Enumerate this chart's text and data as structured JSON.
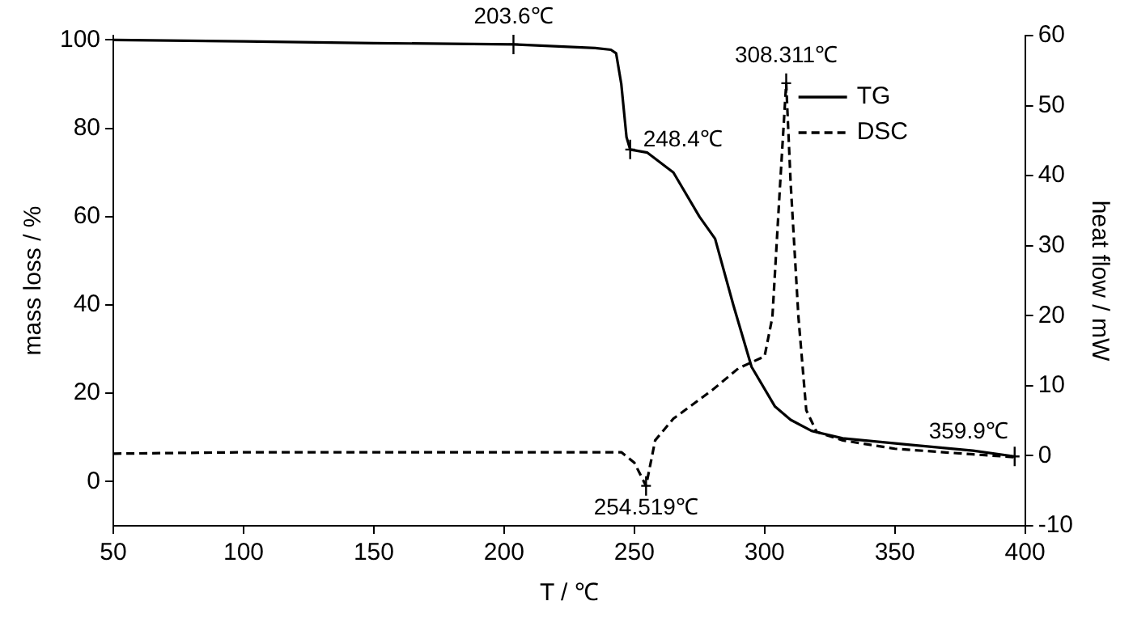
{
  "chart_data": {
    "type": "line",
    "xlabel": "T / ℃",
    "ylabel": "mass loss / %",
    "y2label": "heat flow / mW",
    "xlim": [
      50,
      400
    ],
    "xticks": [
      50,
      100,
      150,
      200,
      250,
      300,
      350,
      400
    ],
    "ylim": [
      -10,
      101
    ],
    "yticks": [
      0,
      20,
      40,
      60,
      80,
      100
    ],
    "y2lim": [
      -10,
      60
    ],
    "y2ticks": [
      -10,
      0,
      10,
      20,
      30,
      40,
      50,
      60
    ],
    "grid": false,
    "legend": "top right",
    "marker": "none",
    "series": [
      {
        "name": "TG",
        "color": "#000000",
        "line_style": "solid",
        "x": [
          50,
          100,
          150,
          203.6,
          235,
          241,
          243,
          245,
          247,
          248.4,
          255,
          265,
          275,
          281,
          288,
          295,
          304,
          310,
          318,
          330,
          355,
          380,
          396
        ],
        "values": [
          100,
          99.7,
          99.3,
          99,
          98.2,
          97.8,
          97,
          90,
          78,
          75.2,
          74.5,
          70,
          60,
          55,
          40,
          26,
          17,
          14,
          11.5,
          9.8,
          8.4,
          7,
          5.7
        ]
      },
      {
        "name": "DSC",
        "color": "#000000",
        "line_style": "dashed",
        "axis": "y2",
        "x": [
          50,
          100,
          150,
          200,
          245,
          250,
          254.5,
          258,
          265,
          280,
          290,
          300,
          303,
          306,
          308.3,
          310,
          313,
          316,
          320,
          330,
          350,
          380,
          396
        ],
        "values": [
          0.3,
          0.5,
          0.5,
          0.5,
          0.5,
          -1,
          -4.3,
          2.2,
          5.3,
          9.4,
          12.5,
          14.2,
          19.8,
          39,
          53.2,
          39,
          19.8,
          6.5,
          3.4,
          2.2,
          1,
          0.2,
          -0.2
        ]
      }
    ],
    "annotations": [
      {
        "text": "203.6℃",
        "x": 203.6,
        "y": 99
      },
      {
        "text": "248.4℃",
        "x": 248.4,
        "y": 75.2
      },
      "308.311℃",
      "254.519℃",
      {
        "text": "359.9℃",
        "x": 396,
        "y": 5.7
      }
    ]
  }
}
